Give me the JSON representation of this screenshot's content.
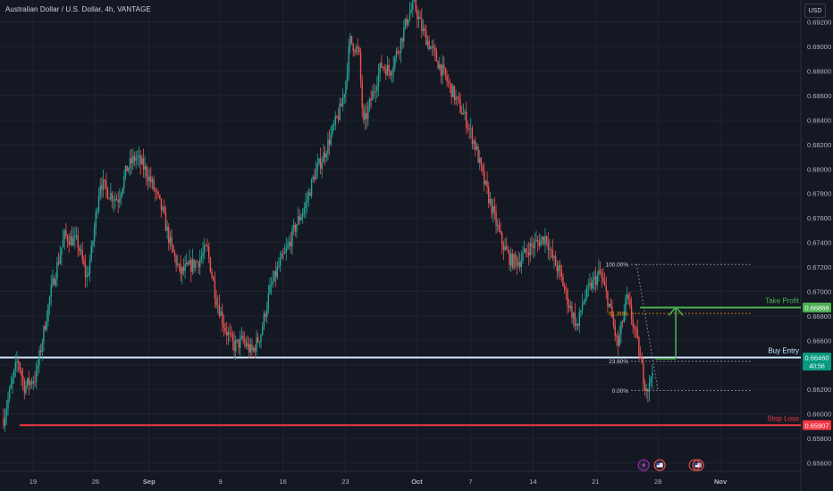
{
  "header": {
    "title": "Australian Dollar / U.S. Dollar, 4h, VANTAGE",
    "currency_button": "USD"
  },
  "colors": {
    "background": "#141823",
    "grid": "#1f2330",
    "bull": "#26a69a",
    "bear": "#ef5350",
    "entry_line": "#cfe7ff",
    "stop_loss": "#f23645",
    "take_profit": "#4caf50",
    "fib_dotted": "#9598a1",
    "fib_618": "#ff9800",
    "axis_text": "#b2b5be"
  },
  "chart_data": {
    "type": "candlestick",
    "symbol": "Australian Dollar / U.S. Dollar",
    "timeframe": "4h",
    "broker": "VANTAGE",
    "ylim": [
      0.6553,
      0.6938
    ],
    "y_ticks": [
      "0.69200",
      "0.69000",
      "0.68800",
      "0.68600",
      "0.68400",
      "0.68200",
      "0.68000",
      "0.67800",
      "0.67600",
      "0.67400",
      "0.67200",
      "0.67000",
      "0.66800",
      "0.66600",
      "0.66400",
      "0.66200",
      "0.66000",
      "0.65800",
      "0.65600"
    ],
    "x_ticks": [
      "19",
      "26",
      "Sep",
      "9",
      "16",
      "23",
      "Oct",
      "7",
      "14",
      "21",
      "28",
      "Nov"
    ],
    "x_tick_days": [
      0,
      7,
      13,
      21,
      28,
      35,
      43,
      49,
      56,
      63,
      70,
      77
    ],
    "x_lim_days": [
      -3.7,
      86
    ],
    "path_anchors": [
      {
        "day": -3.3,
        "price": 0.6596
      },
      {
        "day": -2.6,
        "price": 0.6618
      },
      {
        "day": -1.7,
        "price": 0.6645
      },
      {
        "day": -1.0,
        "price": 0.6622
      },
      {
        "day": 0.3,
        "price": 0.663
      },
      {
        "day": 2.0,
        "price": 0.67
      },
      {
        "day": 3.5,
        "price": 0.6745
      },
      {
        "day": 5.0,
        "price": 0.674
      },
      {
        "day": 6.0,
        "price": 0.671
      },
      {
        "day": 6.6,
        "price": 0.6735
      },
      {
        "day": 7.5,
        "price": 0.679
      },
      {
        "day": 8.5,
        "price": 0.678
      },
      {
        "day": 9.5,
        "price": 0.6775
      },
      {
        "day": 10.5,
        "price": 0.68
      },
      {
        "day": 11.5,
        "price": 0.681
      },
      {
        "day": 12.5,
        "price": 0.68
      },
      {
        "day": 13.2,
        "price": 0.679
      },
      {
        "day": 14.0,
        "price": 0.6775
      },
      {
        "day": 14.5,
        "price": 0.6765
      },
      {
        "day": 15.5,
        "price": 0.6735
      },
      {
        "day": 16.5,
        "price": 0.6715
      },
      {
        "day": 17.5,
        "price": 0.672
      },
      {
        "day": 18.5,
        "price": 0.6725
      },
      {
        "day": 19.5,
        "price": 0.6735
      },
      {
        "day": 20.5,
        "price": 0.6695
      },
      {
        "day": 21.5,
        "price": 0.667
      },
      {
        "day": 22.5,
        "price": 0.6655
      },
      {
        "day": 23.5,
        "price": 0.666
      },
      {
        "day": 24.5,
        "price": 0.665
      },
      {
        "day": 25.5,
        "price": 0.6665
      },
      {
        "day": 26.5,
        "price": 0.67
      },
      {
        "day": 27.5,
        "price": 0.672
      },
      {
        "day": 28.5,
        "price": 0.6735
      },
      {
        "day": 29.5,
        "price": 0.6755
      },
      {
        "day": 30.5,
        "price": 0.677
      },
      {
        "day": 31.5,
        "price": 0.6795
      },
      {
        "day": 32.5,
        "price": 0.681
      },
      {
        "day": 33.5,
        "price": 0.683
      },
      {
        "day": 34.5,
        "price": 0.685
      },
      {
        "day": 35.0,
        "price": 0.687
      },
      {
        "day": 35.5,
        "price": 0.6905
      },
      {
        "day": 36.5,
        "price": 0.6895
      },
      {
        "day": 37.0,
        "price": 0.6835
      },
      {
        "day": 38.0,
        "price": 0.686
      },
      {
        "day": 39.0,
        "price": 0.6885
      },
      {
        "day": 40.0,
        "price": 0.688
      },
      {
        "day": 41.0,
        "price": 0.69
      },
      {
        "day": 42.0,
        "price": 0.6925
      },
      {
        "day": 42.7,
        "price": 0.6935
      },
      {
        "day": 43.5,
        "price": 0.6915
      },
      {
        "day": 44.5,
        "price": 0.69
      },
      {
        "day": 45.5,
        "price": 0.6885
      },
      {
        "day": 46.5,
        "price": 0.687
      },
      {
        "day": 47.5,
        "price": 0.6855
      },
      {
        "day": 48.5,
        "price": 0.684
      },
      {
        "day": 49.5,
        "price": 0.682
      },
      {
        "day": 50.5,
        "price": 0.679
      },
      {
        "day": 51.5,
        "price": 0.6765
      },
      {
        "day": 52.5,
        "price": 0.674
      },
      {
        "day": 53.5,
        "price": 0.6725
      },
      {
        "day": 54.5,
        "price": 0.6725
      },
      {
        "day": 55.5,
        "price": 0.6735
      },
      {
        "day": 56.5,
        "price": 0.674
      },
      {
        "day": 57.5,
        "price": 0.6745
      },
      {
        "day": 58.0,
        "price": 0.673
      },
      {
        "day": 59.0,
        "price": 0.6715
      },
      {
        "day": 60.0,
        "price": 0.669
      },
      {
        "day": 61.0,
        "price": 0.667
      },
      {
        "day": 61.5,
        "price": 0.669
      },
      {
        "day": 62.5,
        "price": 0.6705
      },
      {
        "day": 63.5,
        "price": 0.6715
      },
      {
        "day": 64.5,
        "price": 0.669
      },
      {
        "day": 65.5,
        "price": 0.6655
      },
      {
        "day": 66.5,
        "price": 0.6695
      },
      {
        "day": 67.5,
        "price": 0.6665
      },
      {
        "day": 68.5,
        "price": 0.6625
      },
      {
        "day": 69.0,
        "price": 0.662
      },
      {
        "day": 69.5,
        "price": 0.6646
      }
    ],
    "horizontal_levels": [
      {
        "label": "Take Profit",
        "price": 0.66868,
        "price_label": "0.66868",
        "color": "#4caf50",
        "from_day": 68.0
      },
      {
        "label": "Buy Entry",
        "price": 0.6646,
        "price_label": "0.66460",
        "sub_label": "40:56",
        "color": "#cfe7ff",
        "from_day": -3.7
      },
      {
        "label": "Stop Loss",
        "price": 0.65907,
        "price_label": "0.65907",
        "color": "#f23645",
        "from_day": -1.5
      }
    ],
    "fibonacci": {
      "from_day": 67.0,
      "to_day": 80.5,
      "levels": [
        {
          "label": "100.00%",
          "price": 0.6722
        },
        {
          "label": "61.80%",
          "price": 0.6682
        },
        {
          "label": "23.60%",
          "price": 0.6643
        },
        {
          "label": "0.00%",
          "price": 0.6619
        }
      ]
    },
    "arrow": {
      "from_day": 72.0,
      "from_price": 0.6645,
      "to_price": 0.6687,
      "color": "#4caf50"
    },
    "grid": true
  }
}
